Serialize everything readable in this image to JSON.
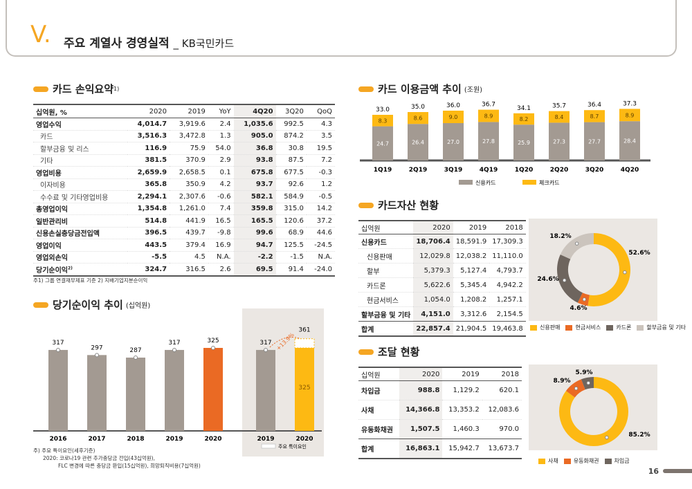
{
  "header": {
    "marker": "V.",
    "title": "주요 계열사 경영실적",
    "subtitle": "_ KB국민카드"
  },
  "pl": {
    "title": "카드 손익요약",
    "sup": "1)",
    "columns": [
      "십억원, %",
      "2020",
      "2019",
      "YoY",
      "4Q20",
      "3Q20",
      "QoQ"
    ],
    "rows": [
      [
        "영업수익",
        "4,014.7",
        "3,919.6",
        "2.4",
        "1,035.6",
        "992.5",
        "4.3"
      ],
      [
        "카드",
        "3,516.3",
        "3,472.8",
        "1.3",
        "905.0",
        "874.2",
        "3.5"
      ],
      [
        "할부금융 및 리스",
        "116.9",
        "75.9",
        "54.0",
        "36.8",
        "30.8",
        "19.5"
      ],
      [
        "기타",
        "381.5",
        "370.9",
        "2.9",
        "93.8",
        "87.5",
        "7.2"
      ],
      [
        "영업비용",
        "2,659.9",
        "2,658.5",
        "0.1",
        "675.8",
        "677.5",
        "-0.3"
      ],
      [
        "이자비용",
        "365.8",
        "350.9",
        "4.2",
        "93.7",
        "92.6",
        "1.2"
      ],
      [
        "수수료 및 기타영업비용",
        "2,294.1",
        "2,307.6",
        "-0.6",
        "582.1",
        "584.9",
        "-0.5"
      ],
      [
        "총영업이익",
        "1,354.8",
        "1,261.0",
        "7.4",
        "359.8",
        "315.0",
        "14.2"
      ],
      [
        "일반관리비",
        "514.8",
        "441.9",
        "16.5",
        "165.5",
        "120.6",
        "37.2"
      ],
      [
        "신용손실충당금전입액",
        "396.5",
        "439.7",
        "-9.8",
        "99.6",
        "68.9",
        "44.6"
      ],
      [
        "영업이익",
        "443.5",
        "379.4",
        "16.9",
        "94.7",
        "125.5",
        "-24.5"
      ],
      [
        "영업외손익",
        "-5.5",
        "4.5",
        "N.A.",
        "-2.2",
        "-1.5",
        "N.A."
      ],
      [
        "당기순이익",
        "324.7",
        "316.5",
        "2.6",
        "69.5",
        "91.4",
        "-24.0"
      ]
    ],
    "last_sup": "2)",
    "note": "주1) 그룹 연결재무제표 기준  2) 지배기업지분순이익"
  },
  "ni": {
    "title": "당기순이익 추이",
    "unit": "(십억원)",
    "chart_data": {
      "type": "bar",
      "categories": [
        "2016",
        "2017",
        "2018",
        "2019",
        "2020"
      ],
      "values": [
        317,
        297,
        287,
        317,
        325
      ],
      "ylim": [
        0,
        400
      ]
    },
    "inset": {
      "categories": [
        "2019",
        "2020"
      ],
      "base_2019": 317,
      "total_2020": 361,
      "value_2020": 325,
      "growth": "+13.9%",
      "legend": "주요 특이요인"
    },
    "notes": [
      "주) 주요 특이요인(세후기준)",
      "2020: 코로나19 관련 추가충당금 전입(43십억원),",
      "FLC 변경에 따른 충당금 환입(15십억원), 희망퇴직비용(7십억원)"
    ]
  },
  "usage": {
    "title": "카드 이용금액 추이",
    "unit": "(조원)",
    "chart_data": {
      "type": "bar",
      "categories": [
        "1Q19",
        "2Q19",
        "3Q19",
        "4Q19",
        "1Q20",
        "2Q20",
        "3Q20",
        "4Q20"
      ],
      "series": [
        {
          "name": "신용카드",
          "values": [
            24.7,
            26.4,
            27.0,
            27.8,
            25.9,
            27.3,
            27.7,
            28.4
          ]
        },
        {
          "name": "체크카드",
          "values": [
            8.3,
            8.6,
            9.0,
            8.9,
            8.2,
            8.4,
            8.7,
            8.9
          ]
        }
      ],
      "totals": [
        33.0,
        35.0,
        36.0,
        36.7,
        34.1,
        35.7,
        36.4,
        37.3
      ],
      "ylim": [
        0,
        40
      ]
    },
    "colors": {
      "credit": "#a39a92",
      "check": "#fdb913"
    }
  },
  "assets": {
    "title": "카드자산 현황",
    "columns": [
      "십억원",
      "2020",
      "2019",
      "2018"
    ],
    "rows": [
      [
        "신용카드",
        "18,706.4",
        "18,591.9",
        "17,309.3"
      ],
      [
        "신용판매",
        "12,029.8",
        "12,038.2",
        "11,110.0"
      ],
      [
        "할부",
        "5,379.3",
        "5,127.4",
        "4,793.7"
      ],
      [
        "카드론",
        "5,622.6",
        "5,345.4",
        "4,942.2"
      ],
      [
        "현금서비스",
        "1,054.0",
        "1,208.2",
        "1,257.1"
      ],
      [
        "할부금융 및 기타",
        "4,151.0",
        "3,312.6",
        "2,154.5"
      ],
      [
        "합계",
        "22,857.4",
        "21,904.5",
        "19,463.8"
      ]
    ],
    "chart_data": {
      "type": "pie",
      "labels": [
        "신용판매",
        "현금서비스",
        "카드론",
        "할부금융 및 기타"
      ],
      "values": [
        52.6,
        4.6,
        24.6,
        18.2
      ]
    },
    "pct_labels": [
      "52.6%",
      "4.6%",
      "24.6%",
      "18.2%"
    ],
    "colors": [
      "#fdb913",
      "#ea6a24",
      "#6e655e",
      "#cbc4bd"
    ]
  },
  "funding": {
    "title": "조달 현황",
    "columns": [
      "십억원",
      "2020",
      "2019",
      "2018"
    ],
    "rows": [
      [
        "차입금",
        "988.8",
        "1,129.2",
        "620.1"
      ],
      [
        "사채",
        "14,366.8",
        "13,353.2",
        "12,083.6"
      ],
      [
        "유동화채권",
        "1,507.5",
        "1,460.3",
        "970.0"
      ],
      [
        "합계",
        "16,863.1",
        "15,942.7",
        "13,673.7"
      ]
    ],
    "chart_data": {
      "type": "pie",
      "labels": [
        "사채",
        "유동화채권",
        "차입금"
      ],
      "values": [
        85.2,
        8.9,
        5.9
      ]
    },
    "pct_labels": [
      "85.2%",
      "8.9%",
      "5.9%"
    ],
    "colors": [
      "#fdb913",
      "#ea6a24",
      "#6e655e"
    ]
  },
  "page": "16"
}
